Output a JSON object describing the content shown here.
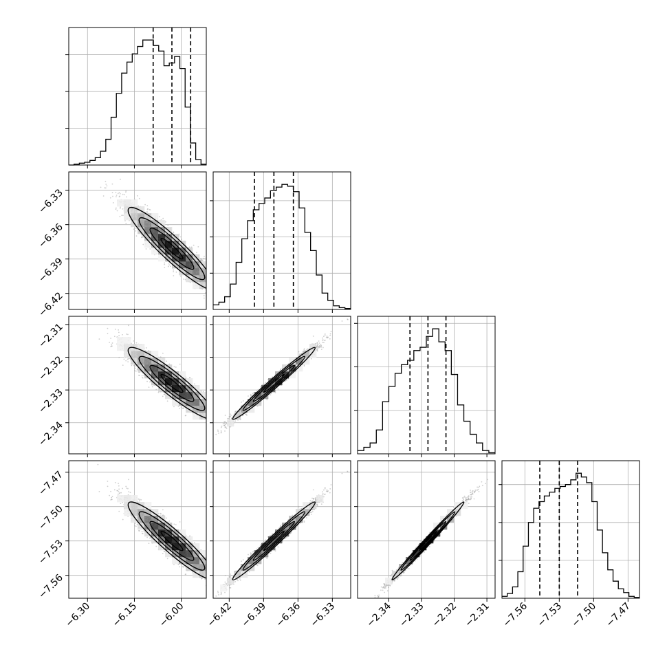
{
  "chart_data": {
    "type": "corner",
    "title": "",
    "grid": true,
    "colors": {
      "marks": "#000000",
      "grid": "#b0b0b0",
      "scatter": "#a0a0a0"
    },
    "parameters": [
      {
        "range": [
          -6.36,
          -5.92
        ],
        "ticks": [
          -6.3,
          -6.15,
          -6.0
        ],
        "tick_labels": [
          "−6.30",
          "−6.15",
          "−6.00"
        ],
        "quantiles": [
          -6.09,
          -6.03,
          -5.97
        ],
        "mean": -6.03,
        "sd": 0.07
      },
      {
        "range": [
          -6.434,
          -6.314
        ],
        "ticks": [
          -6.42,
          -6.39,
          -6.36,
          -6.33
        ],
        "tick_labels": [
          "−6.42",
          "−6.39",
          "−6.36",
          "−6.33"
        ],
        "quantiles": [
          -6.398,
          -6.381,
          -6.364
        ],
        "mean": -6.381,
        "sd": 0.018
      },
      {
        "range": [
          -2.3495,
          -2.3075
        ],
        "ticks": [
          -2.34,
          -2.33,
          -2.32,
          -2.31
        ],
        "tick_labels": [
          "−2.34",
          "−2.33",
          "−2.32",
          "−2.31"
        ],
        "quantiles": [
          -2.3335,
          -2.328,
          -2.3225
        ],
        "mean": -2.328,
        "sd": 0.0055
      },
      {
        "range": [
          -7.58,
          -7.46
        ],
        "ticks": [
          -7.56,
          -7.53,
          -7.5,
          -7.47
        ],
        "tick_labels": [
          "−7.56",
          "−7.53",
          "−7.50",
          "−7.47"
        ],
        "quantiles": [
          -7.547,
          -7.53,
          -7.514
        ],
        "mean": -7.53,
        "sd": 0.017
      }
    ],
    "histograms": [
      {
        "param": 0,
        "counts": [
          0,
          1,
          2,
          3,
          5,
          8,
          15,
          28,
          52,
          78,
          100,
          112,
          121,
          129,
          136,
          136,
          130,
          124,
          108,
          111,
          118,
          105,
          63,
          24,
          6,
          1
        ]
      },
      {
        "param": 1,
        "counts": [
          5,
          8,
          14,
          28,
          52,
          78,
          98,
          110,
          117,
          123,
          131,
          135,
          138,
          136,
          130,
          112,
          85,
          65,
          38,
          18,
          10,
          4,
          2,
          1
        ]
      },
      {
        "param": 2,
        "counts": [
          3,
          6,
          10,
          22,
          48,
          62,
          74,
          82,
          86,
          95,
          98,
          108,
          115,
          103,
          95,
          73,
          45,
          30,
          18,
          10,
          3,
          1
        ]
      },
      {
        "param": 3,
        "counts": [
          2,
          5,
          12,
          28,
          55,
          80,
          95,
          102,
          108,
          112,
          116,
          118,
          120,
          125,
          132,
          128,
          122,
          102,
          72,
          48,
          30,
          18,
          10,
          6,
          2,
          1
        ]
      }
    ],
    "correlations": {
      "1-0": -0.93,
      "2-0": -0.92,
      "2-1": 0.985,
      "3-0": -0.93,
      "3-1": 0.985,
      "3-2": 0.992
    }
  }
}
